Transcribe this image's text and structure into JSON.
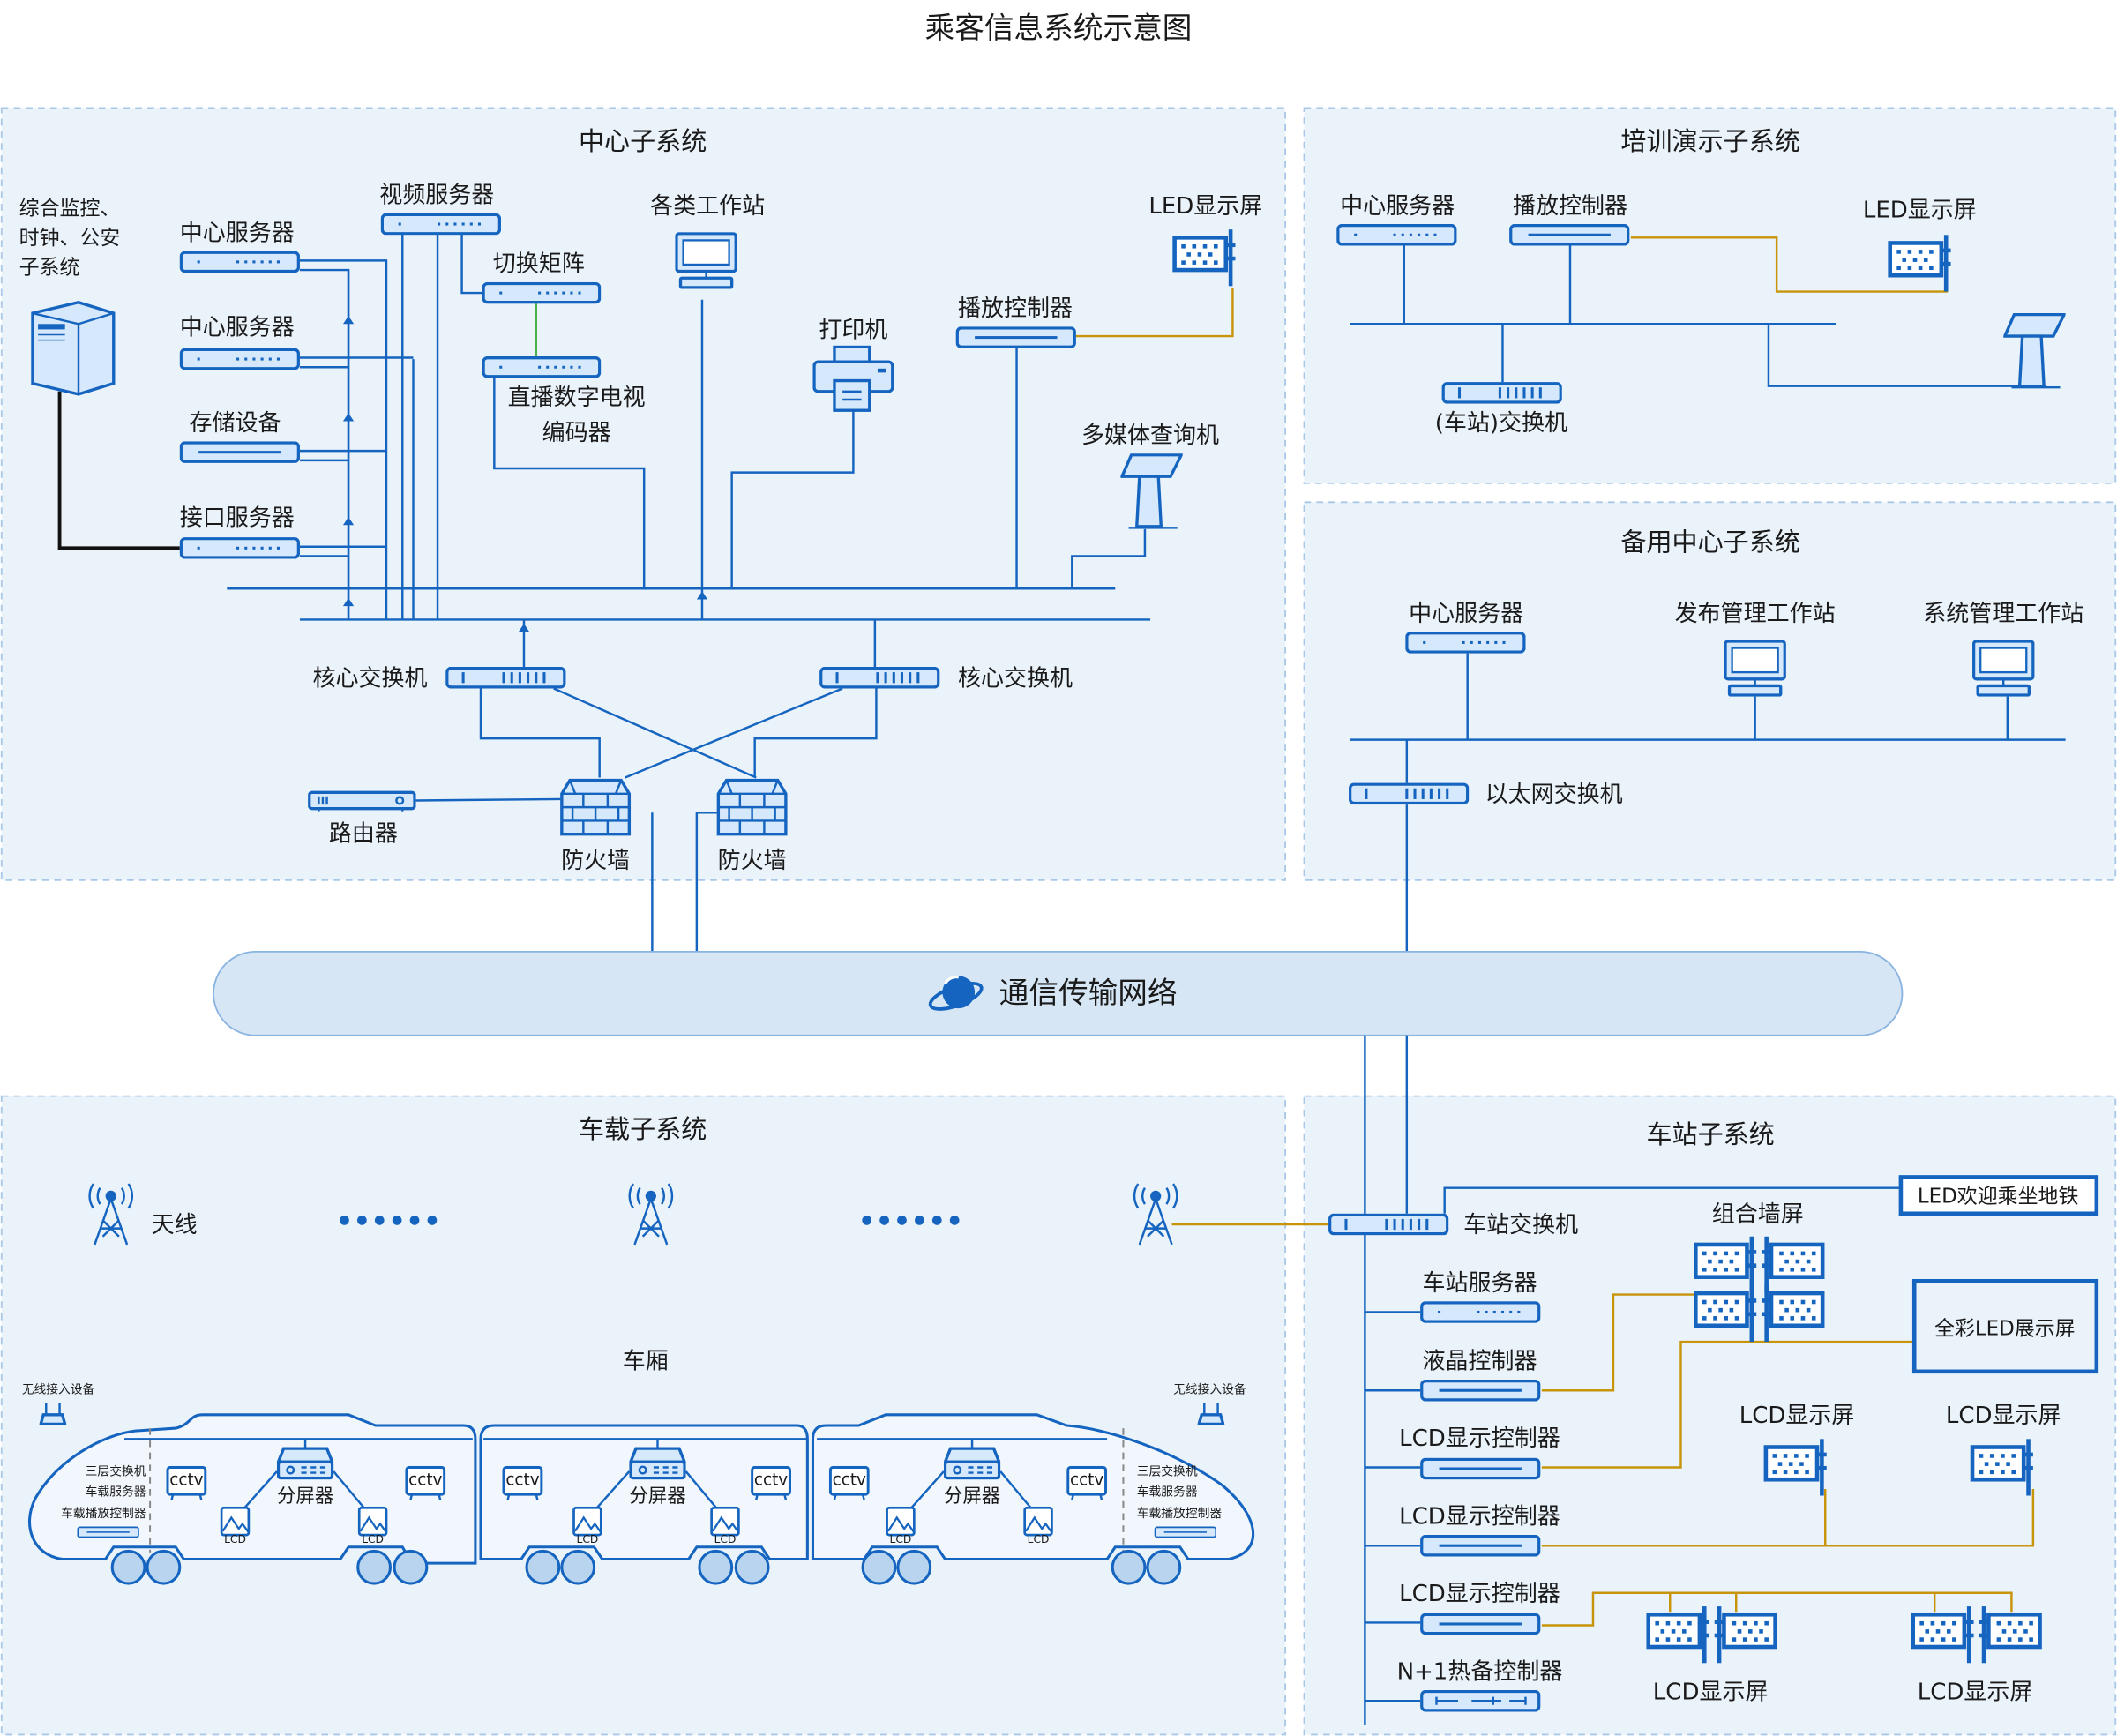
{
  "title": "乘客信息系统示意图",
  "colors": {
    "accent": "#1565c0",
    "panel": "#eaf2fa",
    "link_orange": "#c8940a",
    "network": "#d6e6f5"
  },
  "center": {
    "title": "中心子系统",
    "ext_system": [
      "综合监控、",
      "时钟、公安",
      "子系统"
    ],
    "server1": "中心服务器",
    "server2": "中心服务器",
    "storage": "存储设备",
    "interface_server": "接口服务器",
    "video_server": "视频服务器",
    "switch_matrix": "切换矩阵",
    "encoder": [
      "直播数字电视",
      "编码器"
    ],
    "workstations": "各类工作站",
    "printer": "打印机",
    "play_controller": "播放控制器",
    "led": "LED显示屏",
    "kiosk": "多媒体查询机",
    "core_switch_left": "核心交换机",
    "core_switch_right": "核心交换机",
    "router": "路由器",
    "firewall1": "防火墙",
    "firewall2": "防火墙"
  },
  "training": {
    "title": "培训演示子系统",
    "server": "中心服务器",
    "play_controller": "播放控制器",
    "led": "LED显示屏",
    "switch": "(车站)交换机"
  },
  "backup": {
    "title": "备用中心子系统",
    "server": "中心服务器",
    "publish_ws": "发布管理工作站",
    "system_ws": "系统管理工作站",
    "switch": "以太网交换机"
  },
  "network": {
    "label": "通信传输网络"
  },
  "vehicle": {
    "title": "车载子系统",
    "antenna": "天线",
    "carriage": "车厢",
    "wap": "无线接入设备",
    "head_devices": [
      "三层交换机",
      "车载服务器",
      "车载播放控制器"
    ],
    "cctv": "cctv",
    "splitter": "分屏器",
    "lcd": "LCD"
  },
  "station": {
    "title": "车站子系统",
    "switch": "车站交换机",
    "welcome_led": "LED欢迎乘坐地铁",
    "wall": "组合墙屏",
    "server": "车站服务器",
    "lcd_controller": "液晶控制器",
    "lcd_display_controller": "LCD显示控制器",
    "hot_standby": "N+1热备控制器",
    "full_color_led": "全彩LED展示屏",
    "lcd_screen": "LCD显示屏"
  }
}
